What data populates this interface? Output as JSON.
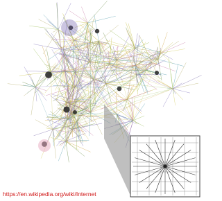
{
  "caption": "https://en.wikipedia.org/wiki/Internet"
}
